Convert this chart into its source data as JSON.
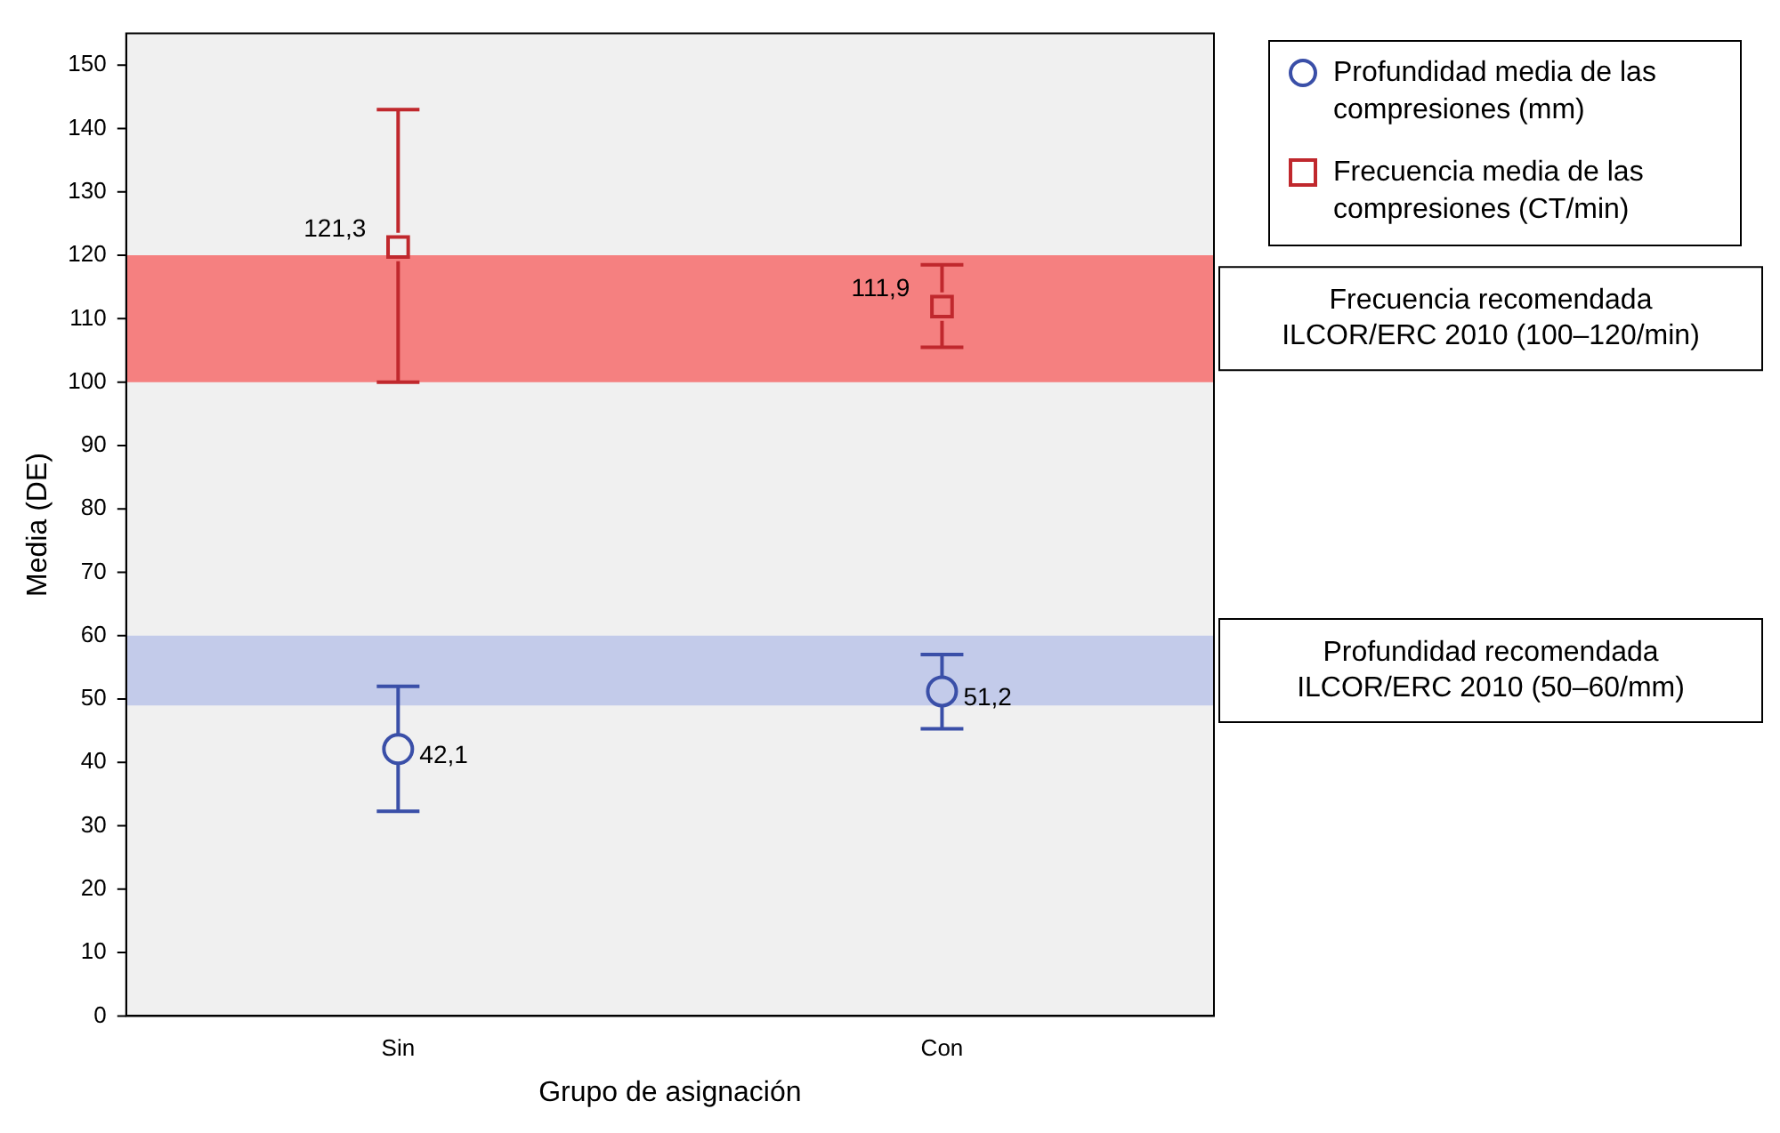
{
  "chart_data": {
    "type": "scatter",
    "xlabel": "Grupo de asignación",
    "ylabel": "Media (DE)",
    "categories": [
      "Sin",
      "Con"
    ],
    "series": [
      {
        "name": "Profundidad media de las compresiones (mm)",
        "color": "#3a4fa8",
        "marker": "circle",
        "values": [
          42.1,
          51.2
        ],
        "errors": [
          [
            32.3,
            52
          ],
          [
            45.3,
            57
          ]
        ],
        "value_labels": [
          "42,1",
          "51,2"
        ]
      },
      {
        "name": "Frecuencia media de las compresiones (CT/min)",
        "color": "#c0282d",
        "marker": "square",
        "values": [
          121.3,
          111.9
        ],
        "errors": [
          [
            100,
            143
          ],
          [
            105.5,
            118.5
          ]
        ],
        "value_labels": [
          "121,3",
          "111,9"
        ]
      }
    ],
    "bands": [
      {
        "axis": "y",
        "from": 100,
        "to": 120,
        "label": "Frecuencia recomendada\nILCOR/ERC 2010 (100–120/min)",
        "color": "#f58080"
      },
      {
        "axis": "y",
        "from": 49,
        "to": 60,
        "label": "Profundidad recomendada\nILCOR/ERC 2010 (50–60/mm)",
        "color": "#c3cbea"
      }
    ],
    "ylim": [
      0,
      155
    ],
    "yticks": [
      0,
      10,
      20,
      30,
      40,
      50,
      60,
      70,
      80,
      90,
      100,
      110,
      120,
      130,
      140,
      150
    ],
    "grid": false,
    "legend": "top right"
  }
}
